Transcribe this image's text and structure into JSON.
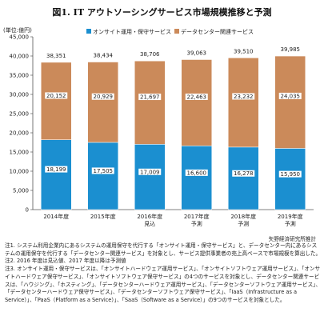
{
  "chart_data": {
    "type": "bar",
    "stacked": true,
    "title": "図1. IT アウトソーシングサービス市場規模推移と予測",
    "unit_label": "(単位:億円)",
    "categories": [
      "2014年度",
      "2015年度",
      "2016年度",
      "2017年度",
      "2018年度",
      "2019年度"
    ],
    "category_sublabels": [
      "",
      "",
      "見込",
      "予測",
      "予測",
      "予測"
    ],
    "series": [
      {
        "name": "オンサイト運用・保守サービス",
        "values": [
          18199,
          17505,
          17009,
          16600,
          16278,
          15950
        ],
        "color": "#1b8fd0"
      },
      {
        "name": "データセンター関連サービス",
        "values": [
          20152,
          20929,
          21697,
          22463,
          23232,
          24035
        ],
        "color": "#cb8a5a"
      }
    ],
    "totals": [
      38351,
      38434,
      38706,
      39063,
      39510,
      39985
    ],
    "ylim": [
      0,
      45000
    ],
    "yticks": [
      0,
      5000,
      10000,
      15000,
      20000,
      25000,
      30000,
      35000,
      40000,
      45000
    ],
    "ytick_labels": [
      "0",
      "5,000",
      "10,000",
      "15,000",
      "20,000",
      "25,000",
      "30,000",
      "35,000",
      "40,000",
      "45,000"
    ],
    "legend_position": "top",
    "grid": false
  },
  "footer": {
    "source": "矢野経済研究所推計",
    "notes": [
      "注1. システム利用企業内にあるシステムの運用保守を代行する「オンサイト運用・保守サービス」と、データセンター内にあるシステムの運用保守を代行する「データセンター関連サービス」を対象とし、サービス提供事業者の売上高ベースで市場規模を算出した。",
      "注2. 2016 年度は見込値、2017 年度以降は予測値",
      "注3. オンサイト運用・保守サービスは、「オンサイトハードウェア運用サービス」、「オンサイトソフトウェア運用サービス」、「オンサイトハードウェア保守サービス」、「オンサイトソフトウェア保守サービス」の4つのサービスを対象とし、データセンター関連サービスは、「ハウジング」、「ホスティング」、「データセンターハードウェア運用サービス」、「データセンターソフトウェア運用サービス」、「データセンターハードウェア保守サービス」、「データセンターソフトウェア保守サービス」、「IaaS（Infrastructure as a Service）」、「PaaS（Platform as a Service）」、「SaaS（Software as a Service）」の9つのサービスを対象とした。"
    ]
  }
}
